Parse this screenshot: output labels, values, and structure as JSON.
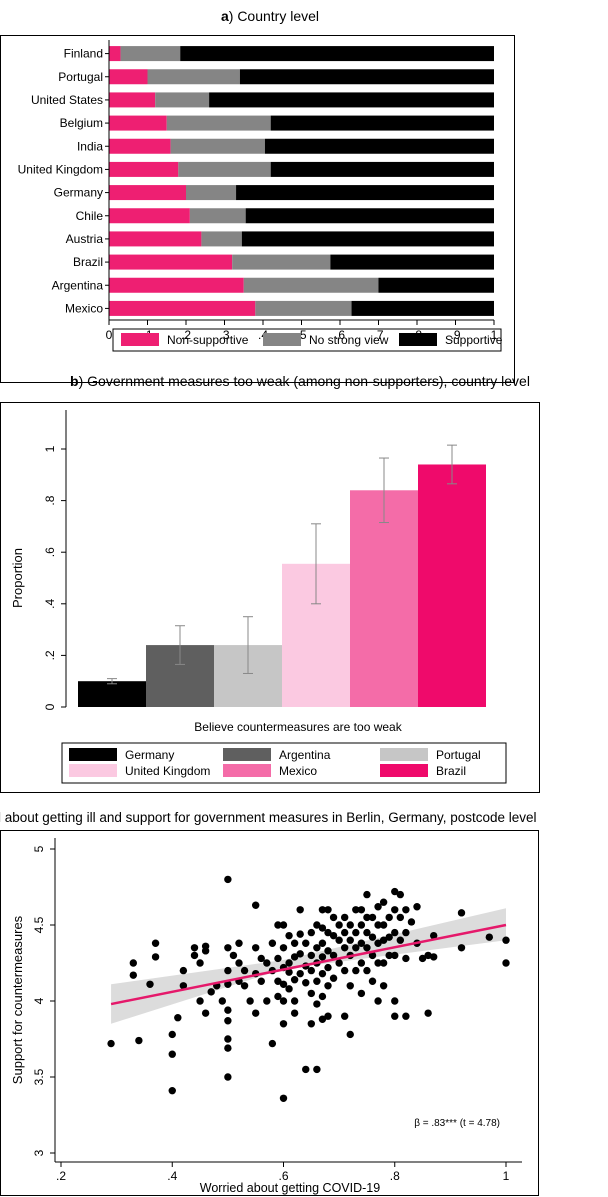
{
  "panel_a": {
    "title_letter": "a",
    "title_rest": ") Country level"
  },
  "panel_b": {
    "title_letter": "b",
    "title_rest": ") Government measures too weak (among non-supporters), country level"
  },
  "panel_c": {
    "title_visible": "l about getting ill and support for government measures in Berlin, Germany, postcode level",
    "annotation": "β = .83*** (t = 4.78)"
  },
  "chart_data": [
    {
      "type": "bar",
      "orientation": "horizontal",
      "stacked": true,
      "title": "a) Country level",
      "categories": [
        "Finland",
        "Portugal",
        "United States",
        "Belgium",
        "India",
        "United Kingdom",
        "Germany",
        "Chile",
        "Austria",
        "Brazil",
        "Argentina",
        "Mexico"
      ],
      "series": [
        {
          "name": "Non-supportive",
          "color": "#ee1f72",
          "values": [
            0.03,
            0.1,
            0.12,
            0.15,
            0.16,
            0.18,
            0.2,
            0.21,
            0.24,
            0.32,
            0.35,
            0.38
          ]
        },
        {
          "name": "No strong view",
          "color": "#858585",
          "values": [
            0.155,
            0.24,
            0.14,
            0.27,
            0.245,
            0.24,
            0.13,
            0.145,
            0.105,
            0.255,
            0.35,
            0.25
          ]
        },
        {
          "name": "Supportive",
          "color": "#000000",
          "values": [
            0.815,
            0.66,
            0.74,
            0.58,
            0.595,
            0.58,
            0.67,
            0.645,
            0.655,
            0.425,
            0.3,
            0.37
          ]
        }
      ],
      "xlim": [
        0,
        1
      ],
      "xticks": [
        "0",
        ".1",
        ".2",
        ".3",
        ".4",
        ".5",
        ".6",
        ".7",
        ".8",
        ".9",
        "1"
      ],
      "legend_position": "bottom",
      "grid": false
    },
    {
      "type": "bar",
      "title": "b) Government measures too weak (among non-supporters), country level",
      "xlabel": "Believe countermeasures are too weak",
      "ylabel": "Proportion",
      "categories": [
        "Germany",
        "Argentina",
        "Portugal",
        "United Kingdom",
        "Mexico",
        "Brazil"
      ],
      "values": [
        0.1,
        0.24,
        0.24,
        0.555,
        0.84,
        0.94
      ],
      "error_low": [
        0.09,
        0.165,
        0.13,
        0.4,
        0.715,
        0.865
      ],
      "error_high": [
        0.11,
        0.315,
        0.35,
        0.71,
        0.965,
        1.015
      ],
      "colors": [
        "#000000",
        "#5f5f5f",
        "#c6c6c6",
        "#fbc9e1",
        "#f46ca8",
        "#ef0a6b"
      ],
      "ylim": [
        0,
        1.05
      ],
      "yticks": [
        "0",
        ".2",
        ".4",
        ".6",
        ".8",
        "1"
      ],
      "legend_position": "bottom",
      "grid": false
    },
    {
      "type": "scatter",
      "title": "l about getting ill and support for government measures in Berlin, Germany, postcode level",
      "xlabel": "Worried about getting COVID-19",
      "ylabel": "Support for countermeasures",
      "xlim": [
        0.18,
        1.02
      ],
      "ylim": [
        2.9,
        5.05
      ],
      "xticks": [
        ".2",
        ".4",
        ".6",
        ".8",
        "1"
      ],
      "yticks": [
        "3",
        "3.5",
        "4",
        "4.5",
        "5"
      ],
      "fit_line": {
        "x": [
          0.29,
          1.0
        ],
        "y": [
          3.98,
          4.5
        ],
        "color": "#e5186a"
      },
      "ci_band": {
        "x": [
          0.29,
          0.6,
          1.0
        ],
        "lower": [
          3.85,
          4.21,
          4.4
        ],
        "upper": [
          4.11,
          4.27,
          4.61
        ]
      },
      "points": [
        [
          0.29,
          3.72
        ],
        [
          0.33,
          4.25
        ],
        [
          0.33,
          4.17
        ],
        [
          0.34,
          3.74
        ],
        [
          0.36,
          4.11
        ],
        [
          0.37,
          4.29
        ],
        [
          0.37,
          4.38
        ],
        [
          0.4,
          3.78
        ],
        [
          0.4,
          3.65
        ],
        [
          0.4,
          3.41
        ],
        [
          0.41,
          3.89
        ],
        [
          0.42,
          4.1
        ],
        [
          0.42,
          4.2
        ],
        [
          0.44,
          4.3
        ],
        [
          0.44,
          4.35
        ],
        [
          0.45,
          4.0
        ],
        [
          0.45,
          4.25
        ],
        [
          0.46,
          4.33
        ],
        [
          0.46,
          4.36
        ],
        [
          0.46,
          3.92
        ],
        [
          0.47,
          4.06
        ],
        [
          0.48,
          4.1
        ],
        [
          0.49,
          4.0
        ],
        [
          0.5,
          4.8
        ],
        [
          0.5,
          4.35
        ],
        [
          0.5,
          4.2
        ],
        [
          0.5,
          4.11
        ],
        [
          0.5,
          3.94
        ],
        [
          0.5,
          3.75
        ],
        [
          0.5,
          3.87
        ],
        [
          0.5,
          3.69
        ],
        [
          0.5,
          3.5
        ],
        [
          0.51,
          4.3
        ],
        [
          0.52,
          4.25
        ],
        [
          0.52,
          4.13
        ],
        [
          0.52,
          4.38
        ],
        [
          0.53,
          4.2
        ],
        [
          0.53,
          4.1
        ],
        [
          0.54,
          4.0
        ],
        [
          0.55,
          4.63
        ],
        [
          0.55,
          4.35
        ],
        [
          0.55,
          4.18
        ],
        [
          0.55,
          3.92
        ],
        [
          0.56,
          4.28
        ],
        [
          0.56,
          4.13
        ],
        [
          0.57,
          4.0
        ],
        [
          0.57,
          4.25
        ],
        [
          0.58,
          4.38
        ],
        [
          0.58,
          4.2
        ],
        [
          0.58,
          3.72
        ],
        [
          0.59,
          4.5
        ],
        [
          0.59,
          4.28
        ],
        [
          0.59,
          4.13
        ],
        [
          0.59,
          4.03
        ],
        [
          0.6,
          4.5
        ],
        [
          0.6,
          4.35
        ],
        [
          0.6,
          4.22
        ],
        [
          0.6,
          4.11
        ],
        [
          0.6,
          4.0
        ],
        [
          0.6,
          3.85
        ],
        [
          0.6,
          3.36
        ],
        [
          0.61,
          4.43
        ],
        [
          0.61,
          4.25
        ],
        [
          0.61,
          4.19
        ],
        [
          0.61,
          4.08
        ],
        [
          0.62,
          4.38
        ],
        [
          0.62,
          4.29
        ],
        [
          0.62,
          4.14
        ],
        [
          0.62,
          4.0
        ],
        [
          0.62,
          3.92
        ],
        [
          0.63,
          4.6
        ],
        [
          0.63,
          4.44
        ],
        [
          0.63,
          4.31
        ],
        [
          0.63,
          4.18
        ],
        [
          0.64,
          4.38
        ],
        [
          0.64,
          4.23
        ],
        [
          0.64,
          4.12
        ],
        [
          0.64,
          3.55
        ],
        [
          0.65,
          4.45
        ],
        [
          0.65,
          4.3
        ],
        [
          0.65,
          4.2
        ],
        [
          0.65,
          4.05
        ],
        [
          0.65,
          3.85
        ],
        [
          0.66,
          4.5
        ],
        [
          0.66,
          4.35
        ],
        [
          0.66,
          4.25
        ],
        [
          0.66,
          4.13
        ],
        [
          0.66,
          3.98
        ],
        [
          0.66,
          3.55
        ],
        [
          0.67,
          4.6
        ],
        [
          0.67,
          4.48
        ],
        [
          0.67,
          4.38
        ],
        [
          0.67,
          4.29
        ],
        [
          0.67,
          4.18
        ],
        [
          0.67,
          4.03
        ],
        [
          0.67,
          3.88
        ],
        [
          0.68,
          4.6
        ],
        [
          0.68,
          4.45
        ],
        [
          0.68,
          4.33
        ],
        [
          0.68,
          4.22
        ],
        [
          0.68,
          4.1
        ],
        [
          0.68,
          3.9
        ],
        [
          0.69,
          4.55
        ],
        [
          0.69,
          4.43
        ],
        [
          0.69,
          4.3
        ],
        [
          0.69,
          4.15
        ],
        [
          0.7,
          4.5
        ],
        [
          0.7,
          4.4
        ],
        [
          0.7,
          4.25
        ],
        [
          0.71,
          4.55
        ],
        [
          0.71,
          4.45
        ],
        [
          0.71,
          4.35
        ],
        [
          0.71,
          4.2
        ],
        [
          0.71,
          3.9
        ],
        [
          0.72,
          4.5
        ],
        [
          0.72,
          4.4
        ],
        [
          0.72,
          4.3
        ],
        [
          0.72,
          4.1
        ],
        [
          0.72,
          3.78
        ],
        [
          0.73,
          4.6
        ],
        [
          0.73,
          4.45
        ],
        [
          0.73,
          4.35
        ],
        [
          0.73,
          4.2
        ],
        [
          0.74,
          4.6
        ],
        [
          0.74,
          4.5
        ],
        [
          0.74,
          4.38
        ],
        [
          0.74,
          4.25
        ],
        [
          0.74,
          4.05
        ],
        [
          0.75,
          4.7
        ],
        [
          0.75,
          4.55
        ],
        [
          0.75,
          4.45
        ],
        [
          0.75,
          4.35
        ],
        [
          0.75,
          4.2
        ],
        [
          0.76,
          4.55
        ],
        [
          0.76,
          4.42
        ],
        [
          0.76,
          4.3
        ],
        [
          0.76,
          4.13
        ],
        [
          0.77,
          4.62
        ],
        [
          0.77,
          4.5
        ],
        [
          0.77,
          4.38
        ],
        [
          0.77,
          4.25
        ],
        [
          0.77,
          4.0
        ],
        [
          0.78,
          4.65
        ],
        [
          0.78,
          4.5
        ],
        [
          0.78,
          4.4
        ],
        [
          0.78,
          4.25
        ],
        [
          0.78,
          4.1
        ],
        [
          0.79,
          4.55
        ],
        [
          0.79,
          4.42
        ],
        [
          0.79,
          4.3
        ],
        [
          0.8,
          4.72
        ],
        [
          0.8,
          4.6
        ],
        [
          0.8,
          4.45
        ],
        [
          0.8,
          4.3
        ],
        [
          0.8,
          4.0
        ],
        [
          0.8,
          3.9
        ],
        [
          0.81,
          4.7
        ],
        [
          0.81,
          4.55
        ],
        [
          0.81,
          4.4
        ],
        [
          0.82,
          4.6
        ],
        [
          0.82,
          4.45
        ],
        [
          0.82,
          4.28
        ],
        [
          0.82,
          3.9
        ],
        [
          0.83,
          4.52
        ],
        [
          0.84,
          4.38
        ],
        [
          0.84,
          4.62
        ],
        [
          0.85,
          4.28
        ],
        [
          0.86,
          3.92
        ],
        [
          0.86,
          4.3
        ],
        [
          0.87,
          4.29
        ],
        [
          0.87,
          4.43
        ],
        [
          0.92,
          4.58
        ],
        [
          0.92,
          4.35
        ],
        [
          0.97,
          4.42
        ],
        [
          1.0,
          4.4
        ],
        [
          1.0,
          4.25
        ]
      ],
      "grid": false
    }
  ]
}
